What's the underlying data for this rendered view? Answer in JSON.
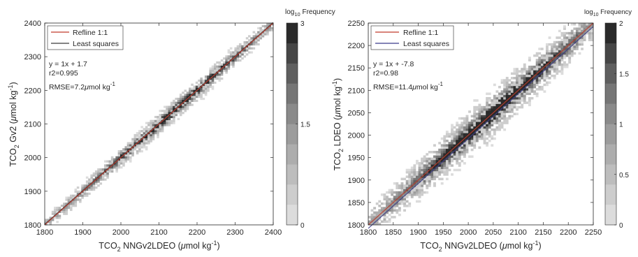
{
  "chart_data": [
    {
      "type": "heatmap",
      "xlabel": {
        "pre": "TCO",
        "sub": "2",
        "post": " NNGv2LDEO (",
        "mu": "μ",
        "unit": "mol kg",
        "sup": "-1",
        "close": ")"
      },
      "ylabel": {
        "pre": "TCO",
        "sub": "2",
        "post": " Gv2 (",
        "mu": "μ",
        "unit": "mol kg",
        "sup": "-1",
        "close": ")"
      },
      "xlim": [
        1800,
        2400
      ],
      "ylim": [
        1800,
        2400
      ],
      "xticks": [
        1800,
        1900,
        2000,
        2100,
        2200,
        2300,
        2400
      ],
      "yticks": [
        1800,
        1900,
        2000,
        2100,
        2200,
        2300,
        2400
      ],
      "legend": {
        "location": "top-left",
        "entries": [
          {
            "name": "Refline 1:1",
            "color": "#c0392b"
          },
          {
            "name": "Least squares",
            "color": "#3a3a3a"
          }
        ]
      },
      "fit": {
        "slope": 1,
        "intercept": 1.7
      },
      "stats": {
        "equation": "y = 1x + 1.7",
        "r2": "r2=0.995",
        "rmse_pre": "RMSE=7.2",
        "rmse_mu": "μ",
        "rmse_unit": "mol kg",
        "rmse_sup": "-1"
      },
      "colorbar": {
        "label_pre": "log",
        "label_sub": "10",
        "label_post": " Frequency",
        "min": 0,
        "max": 3,
        "ticks": [
          0,
          1.5,
          3
        ],
        "levels": 10,
        "colors": [
          "#dcdcdc",
          "#cdcdcd",
          "#bdbdbd",
          "#adadad",
          "#9c9c9c",
          "#8a8a8a",
          "#767676",
          "#5f5f5f",
          "#464646",
          "#2a2a2a"
        ]
      },
      "data_description": {
        "spread_sd": 7.2,
        "bin_width": 6
      }
    },
    {
      "type": "heatmap",
      "xlabel": {
        "pre": "TCO",
        "sub": "2",
        "post": " NNGv2LDEO (",
        "mu": "μ",
        "unit": "mol kg",
        "sup": "-1",
        "close": ")"
      },
      "ylabel": {
        "pre": "TCO",
        "sub": "2",
        "post": " LDEO (",
        "mu": "μ",
        "unit": "mol kg",
        "sup": "-1",
        "close": ")"
      },
      "xlim": [
        1800,
        2250
      ],
      "ylim": [
        1800,
        2250
      ],
      "xticks": [
        1800,
        1850,
        1900,
        1950,
        2000,
        2050,
        2100,
        2150,
        2200,
        2250
      ],
      "yticks": [
        1800,
        1850,
        1900,
        1950,
        2000,
        2050,
        2100,
        2150,
        2200,
        2250
      ],
      "legend": {
        "location": "top-left",
        "entries": [
          {
            "name": "Refline 1:1",
            "color": "#c0392b"
          },
          {
            "name": "Least squares",
            "color": "#3b3b8a"
          }
        ]
      },
      "fit": {
        "slope": 1,
        "intercept": -7.8
      },
      "stats": {
        "equation": "y = 1x + -7.8",
        "r2": "r2=0.98",
        "rmse_pre": "RMSE=11.4",
        "rmse_mu": "μ",
        "rmse_unit": "mol kg",
        "rmse_sup": "-1"
      },
      "colorbar": {
        "label_pre": "log",
        "label_sub": "10",
        "label_post": " Frequency",
        "min": 0,
        "max": 2,
        "ticks": [
          0,
          0.5,
          1,
          1.5,
          2
        ],
        "levels": 10,
        "colors": [
          "#dcdcdc",
          "#cdcdcd",
          "#bdbdbd",
          "#adadad",
          "#9c9c9c",
          "#8a8a8a",
          "#767676",
          "#5f5f5f",
          "#464646",
          "#2a2a2a"
        ]
      },
      "data_description": {
        "spread_sd": 11.4,
        "bin_width": 5
      }
    }
  ]
}
